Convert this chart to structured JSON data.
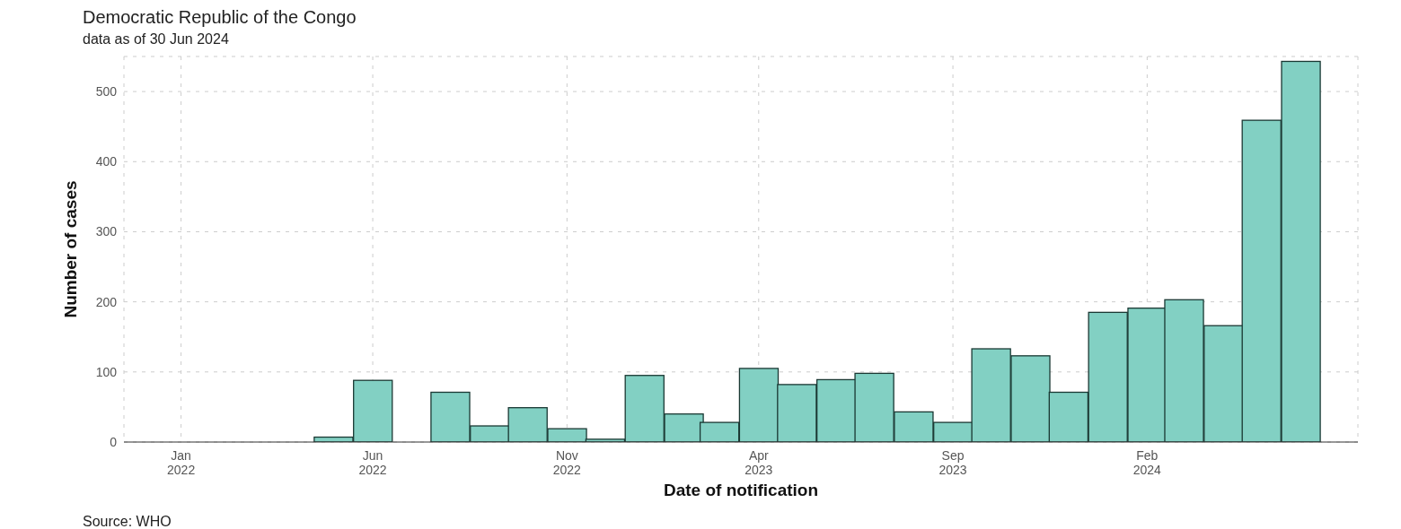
{
  "chart_data": {
    "type": "bar",
    "title": "Democratic Republic of the Congo",
    "subtitle": "data as of 30 Jun 2024",
    "xlabel": "Date of notification",
    "ylabel": "Number of cases",
    "annotations": [
      "Source: WHO"
    ],
    "x": [
      "2022-05-01",
      "2022-06-01",
      "2022-07-01",
      "2022-08-01",
      "2022-09-01",
      "2022-10-01",
      "2022-11-01",
      "2022-12-01",
      "2023-01-01",
      "2023-02-01",
      "2023-03-01",
      "2023-04-01",
      "2023-05-01",
      "2023-06-01",
      "2023-07-01",
      "2023-08-01",
      "2023-09-01",
      "2023-10-01",
      "2023-11-01",
      "2023-12-01",
      "2024-01-01",
      "2024-02-01",
      "2024-03-01",
      "2024-04-01",
      "2024-05-01",
      "2024-06-01"
    ],
    "values": [
      7,
      88,
      0,
      71,
      23,
      49,
      19,
      4,
      95,
      40,
      28,
      105,
      82,
      89,
      98,
      43,
      28,
      133,
      123,
      71,
      185,
      191,
      203,
      166,
      459,
      543
    ],
    "color": "#82d0c3",
    "xlim": [
      "2021-11-17",
      "2024-07-16"
    ],
    "xticks": [
      {
        "value": "2022-01-01",
        "label": "Jan\n2022"
      },
      {
        "value": "2022-06-01",
        "label": "Jun\n2022"
      },
      {
        "value": "2022-11-01",
        "label": "Nov\n2022"
      },
      {
        "value": "2023-04-01",
        "label": "Apr\n2023"
      },
      {
        "value": "2023-09-01",
        "label": "Sep\n2023"
      },
      {
        "value": "2024-02-01",
        "label": "Feb\n2024"
      }
    ],
    "ylim": [
      0,
      550
    ],
    "yticks": [
      0,
      100,
      200,
      300,
      400,
      500
    ],
    "grid": true
  }
}
